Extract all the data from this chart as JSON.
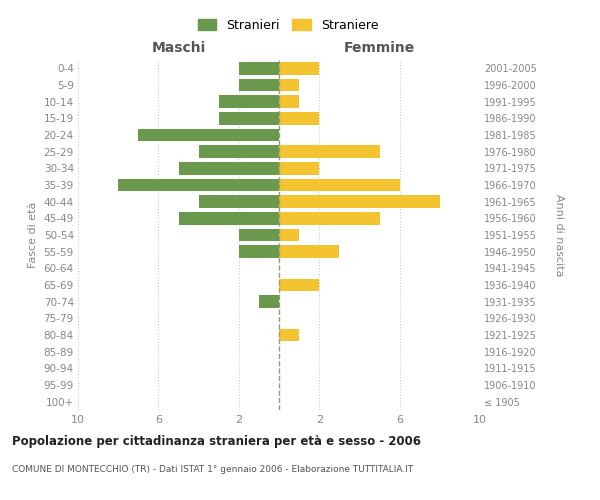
{
  "age_groups": [
    "100+",
    "95-99",
    "90-94",
    "85-89",
    "80-84",
    "75-79",
    "70-74",
    "65-69",
    "60-64",
    "55-59",
    "50-54",
    "45-49",
    "40-44",
    "35-39",
    "30-34",
    "25-29",
    "20-24",
    "15-19",
    "10-14",
    "5-9",
    "0-4"
  ],
  "birth_years": [
    "≤ 1905",
    "1906-1910",
    "1911-1915",
    "1916-1920",
    "1921-1925",
    "1926-1930",
    "1931-1935",
    "1936-1940",
    "1941-1945",
    "1946-1950",
    "1951-1955",
    "1956-1960",
    "1961-1965",
    "1966-1970",
    "1971-1975",
    "1976-1980",
    "1981-1985",
    "1986-1990",
    "1991-1995",
    "1996-2000",
    "2001-2005"
  ],
  "maschi": [
    0,
    0,
    0,
    0,
    0,
    0,
    1,
    0,
    0,
    2,
    2,
    5,
    4,
    8,
    5,
    4,
    7,
    3,
    3,
    2,
    2
  ],
  "femmine": [
    0,
    0,
    0,
    0,
    1,
    0,
    0,
    2,
    0,
    3,
    1,
    5,
    8,
    6,
    2,
    5,
    0,
    2,
    1,
    1,
    2
  ],
  "maschi_color": "#6a994e",
  "femmine_color": "#f4c430",
  "title": "Popolazione per cittadinanza straniera per età e sesso - 2006",
  "subtitle": "COMUNE DI MONTECCHIO (TR) - Dati ISTAT 1° gennaio 2006 - Elaborazione TUTTITALIA.IT",
  "ylabel_left": "Fasce di età",
  "ylabel_right": "Anni di nascita",
  "xlabel_left": "Maschi",
  "xlabel_right": "Femmine",
  "legend_stranieri": "Stranieri",
  "legend_straniere": "Straniere",
  "xlim": 10,
  "background_color": "#ffffff",
  "grid_color": "#cccccc",
  "bar_height": 0.75
}
